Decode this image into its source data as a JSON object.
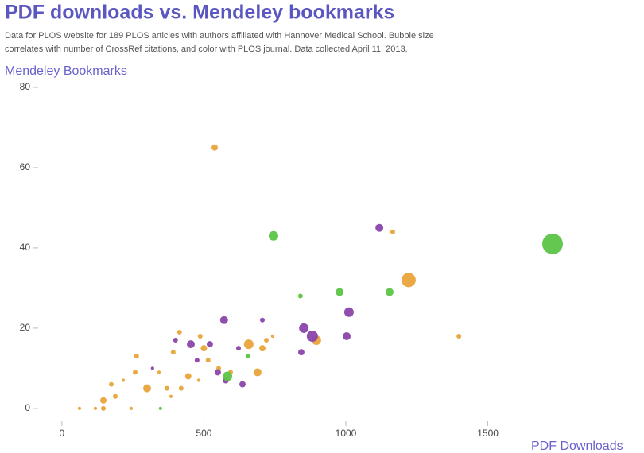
{
  "chart_data": {
    "type": "bubble",
    "title": "PDF downloads vs. Mendeley bookmarks",
    "subtitle": [
      "Data for PLOS website for 189 PLOS articles with authors affiliated with Hannover Medical School. Bubble size",
      "correlates with number of CrossRef citations, and color with PLOS journal. Data collected April 11, 2013."
    ],
    "ylabel": "Mendeley Bookmarks",
    "xlabel": "PDF Downloads",
    "xlim": [
      -50,
      2050
    ],
    "xticks": [
      0,
      500,
      1000,
      1500
    ],
    "ylim": [
      -3,
      80
    ],
    "yticks": [
      0,
      20,
      40,
      60,
      80
    ],
    "series": [
      {
        "color": "#e9a43a",
        "x": [
          538,
          1165,
          1221,
          1398,
          658,
          706,
          689,
          896,
          500,
          487,
          515,
          445,
          392,
          414,
          300,
          258,
          263,
          188,
          146,
          146,
          118,
          174,
          216,
          342,
          370,
          420,
          552,
          742,
          720,
          62,
          244,
          384,
          482,
          594
        ],
        "values": [
          65,
          44,
          32,
          18,
          16,
          15,
          9,
          17,
          15,
          18,
          12,
          8,
          14,
          19,
          5,
          9,
          13,
          3,
          2,
          0,
          0,
          6,
          7,
          9,
          5,
          5,
          10,
          18,
          17,
          0,
          0,
          3,
          7,
          9
        ],
        "sizes": [
          7,
          4,
          36,
          4,
          16,
          7,
          11,
          16,
          7,
          4,
          4,
          7,
          4,
          4,
          11,
          4,
          4,
          4,
          7,
          4,
          2,
          4,
          2,
          2,
          4,
          4,
          4,
          2,
          4,
          2,
          2,
          2,
          2,
          4
        ]
      },
      {
        "color": "#8a45ab",
        "x": [
          1118,
          1011,
          852,
          882,
          1003,
          843,
          571,
          706,
          454,
          521,
          622,
          549,
          636,
          577,
          400,
          476,
          319
        ],
        "values": [
          45,
          24,
          20,
          18,
          18,
          14,
          22,
          22,
          16,
          16,
          15,
          9,
          6,
          7,
          17,
          12,
          10
        ],
        "sizes": [
          11,
          16,
          16,
          22,
          11,
          7,
          11,
          4,
          11,
          7,
          4,
          7,
          7,
          7,
          4,
          4,
          2
        ]
      },
      {
        "color": "#5cc447",
        "x": [
          1728,
          745,
          978,
          1154,
          840,
          583,
          655,
          347
        ],
        "values": [
          41,
          43,
          29,
          29,
          28,
          8,
          13,
          0
        ],
        "sizes": [
          75,
          16,
          11,
          11,
          4,
          16,
          4,
          2
        ]
      }
    ]
  }
}
